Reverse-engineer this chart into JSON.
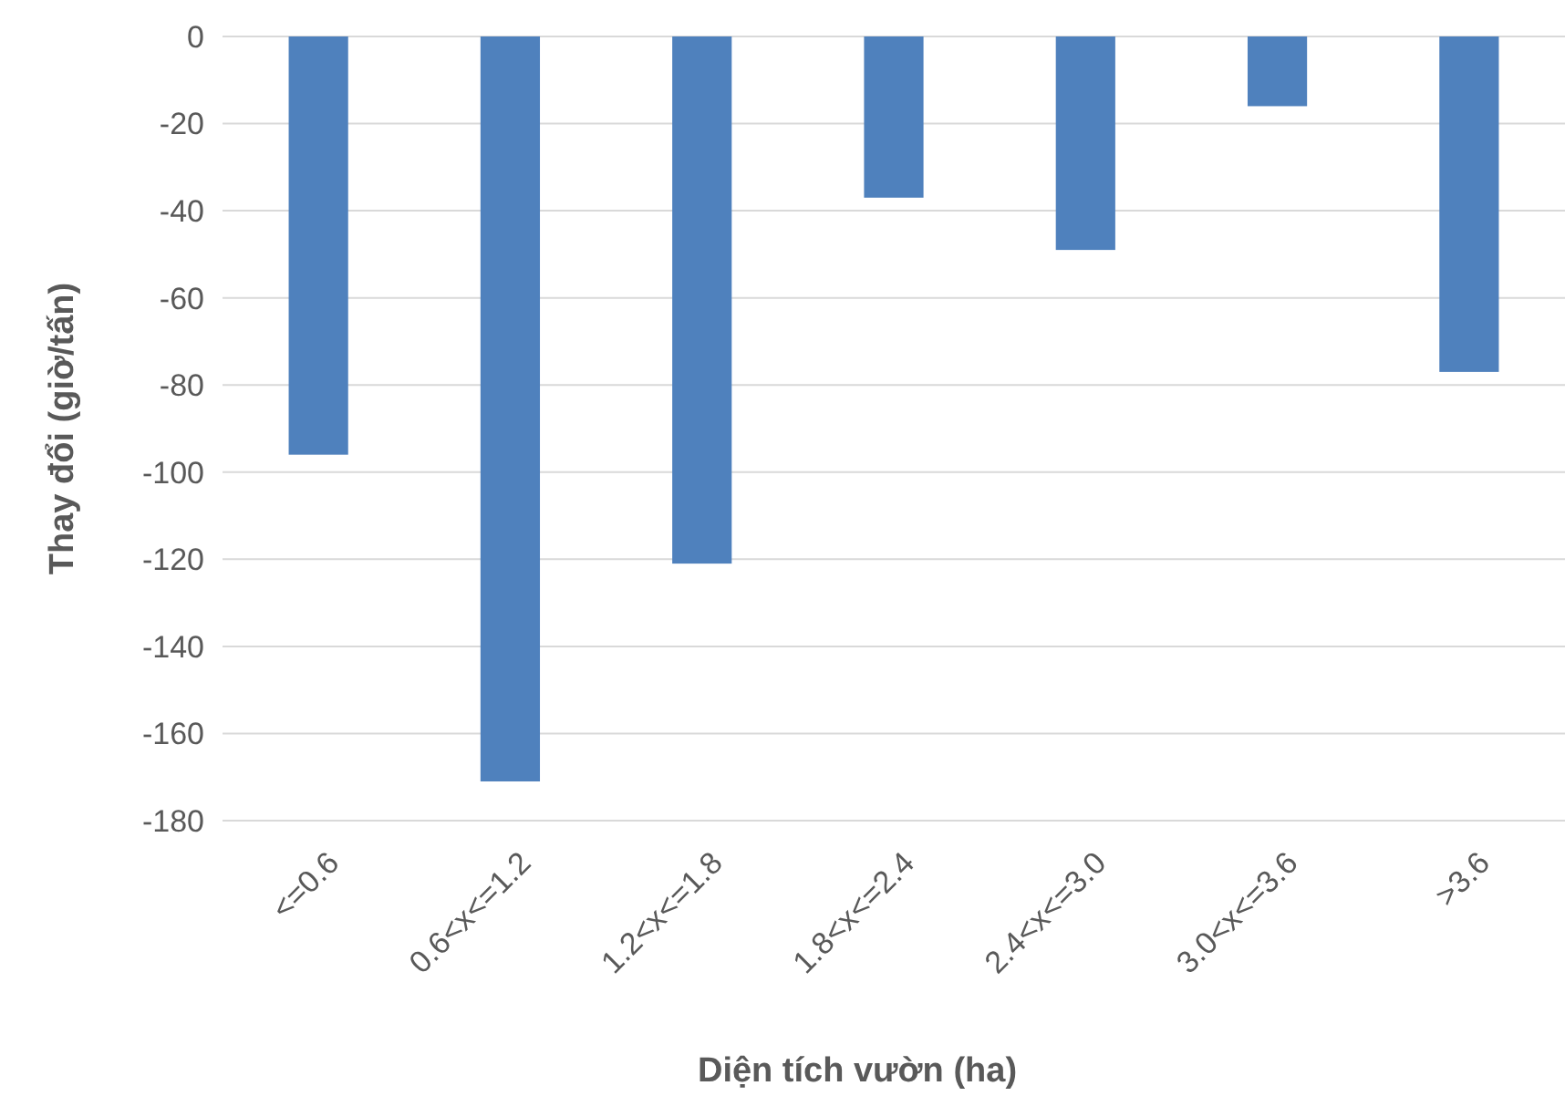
{
  "chart_data": {
    "type": "bar",
    "xlabel": "Diện tích vườn (ha)",
    "ylabel": "Thay đổi (giờ/tấn)",
    "categories": [
      "<=0.6",
      "0.6<x<=1.2",
      "1.2<x<=1.8",
      "1.8<x<=2.4",
      "2.4<x<=3.0",
      "3.0<x<=3.6",
      ">3.6"
    ],
    "values": [
      -96,
      -171,
      -121,
      -37,
      -49,
      -16,
      -77
    ],
    "color": "#4f81bd",
    "ylim": [
      -180,
      0
    ],
    "yticks": [
      -180,
      -160,
      -140,
      -120,
      -100,
      -80,
      -60,
      -40,
      -20,
      0
    ],
    "grid": "y"
  }
}
